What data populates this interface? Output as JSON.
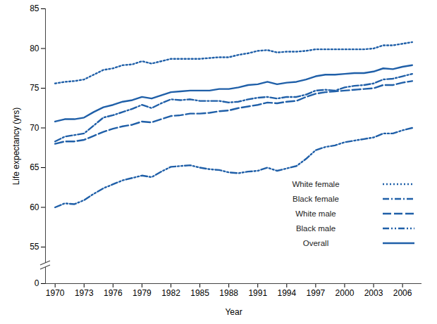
{
  "chart_data": {
    "type": "line",
    "x_label": "Year",
    "y_label": "Life expectancy (yrs)",
    "x": [
      1970,
      1971,
      1972,
      1973,
      1974,
      1975,
      1976,
      1977,
      1978,
      1979,
      1980,
      1981,
      1982,
      1983,
      1984,
      1985,
      1986,
      1987,
      1988,
      1989,
      1990,
      1991,
      1992,
      1993,
      1994,
      1995,
      1996,
      1997,
      1998,
      1999,
      2000,
      2001,
      2002,
      2003,
      2004,
      2005,
      2006,
      2007
    ],
    "series": [
      {
        "name": "White female",
        "color": "#1f5fa8",
        "line_style": "dotted",
        "values": [
          75.6,
          75.8,
          75.9,
          76.1,
          76.7,
          77.3,
          77.5,
          77.9,
          78.0,
          78.4,
          78.1,
          78.4,
          78.7,
          78.7,
          78.7,
          78.7,
          78.8,
          78.9,
          78.9,
          79.2,
          79.4,
          79.7,
          79.8,
          79.5,
          79.6,
          79.6,
          79.7,
          79.9,
          79.9,
          79.9,
          79.9,
          79.9,
          79.9,
          80.0,
          80.4,
          80.4,
          80.6,
          80.8
        ]
      },
      {
        "name": "Black female",
        "color": "#1f5fa8",
        "line_style": "dash_dot",
        "values": [
          68.3,
          68.9,
          69.1,
          69.3,
          70.3,
          71.3,
          71.6,
          72.0,
          72.4,
          72.9,
          72.5,
          73.1,
          73.6,
          73.5,
          73.6,
          73.4,
          73.4,
          73.4,
          73.2,
          73.3,
          73.6,
          73.8,
          73.9,
          73.7,
          73.9,
          73.9,
          74.2,
          74.7,
          74.8,
          74.7,
          75.1,
          75.3,
          75.4,
          75.6,
          76.1,
          76.2,
          76.5,
          76.8
        ]
      },
      {
        "name": "White male",
        "color": "#1f5fa8",
        "line_style": "dashed",
        "values": [
          68.0,
          68.3,
          68.3,
          68.5,
          69.0,
          69.5,
          69.9,
          70.2,
          70.4,
          70.8,
          70.7,
          71.1,
          71.5,
          71.6,
          71.8,
          71.8,
          71.9,
          72.1,
          72.2,
          72.5,
          72.7,
          72.9,
          73.2,
          73.1,
          73.3,
          73.4,
          73.9,
          74.3,
          74.5,
          74.6,
          74.7,
          74.8,
          74.9,
          75.0,
          75.4,
          75.4,
          75.7,
          75.9
        ]
      },
      {
        "name": "Black male",
        "color": "#1f5fa8",
        "line_style": "dash_dot_dot",
        "values": [
          60.0,
          60.5,
          60.4,
          60.9,
          61.7,
          62.4,
          62.9,
          63.4,
          63.7,
          64.0,
          63.8,
          64.5,
          65.1,
          65.2,
          65.3,
          65.0,
          64.8,
          64.7,
          64.4,
          64.3,
          64.5,
          64.6,
          65.0,
          64.6,
          64.9,
          65.2,
          66.1,
          67.2,
          67.6,
          67.8,
          68.2,
          68.4,
          68.6,
          68.8,
          69.3,
          69.3,
          69.7,
          70.0
        ]
      },
      {
        "name": "Overall",
        "color": "#1f5fa8",
        "line_style": "solid",
        "values": [
          70.8,
          71.1,
          71.1,
          71.3,
          72.0,
          72.6,
          72.9,
          73.3,
          73.5,
          73.9,
          73.7,
          74.1,
          74.5,
          74.6,
          74.7,
          74.7,
          74.7,
          74.9,
          74.9,
          75.1,
          75.4,
          75.5,
          75.8,
          75.5,
          75.7,
          75.8,
          76.1,
          76.5,
          76.7,
          76.7,
          76.8,
          76.9,
          76.9,
          77.1,
          77.5,
          77.4,
          77.7,
          77.9
        ]
      }
    ],
    "xlim": [
      1969,
      2008
    ],
    "xticks": [
      1970,
      1973,
      1976,
      1979,
      1982,
      1985,
      1988,
      1991,
      1994,
      1997,
      2000,
      2003,
      2006
    ],
    "ylim": [
      0,
      85
    ],
    "yticks": [
      0,
      55,
      60,
      65,
      70,
      75,
      80,
      85
    ],
    "grid": false,
    "legend": "bottom-right"
  }
}
